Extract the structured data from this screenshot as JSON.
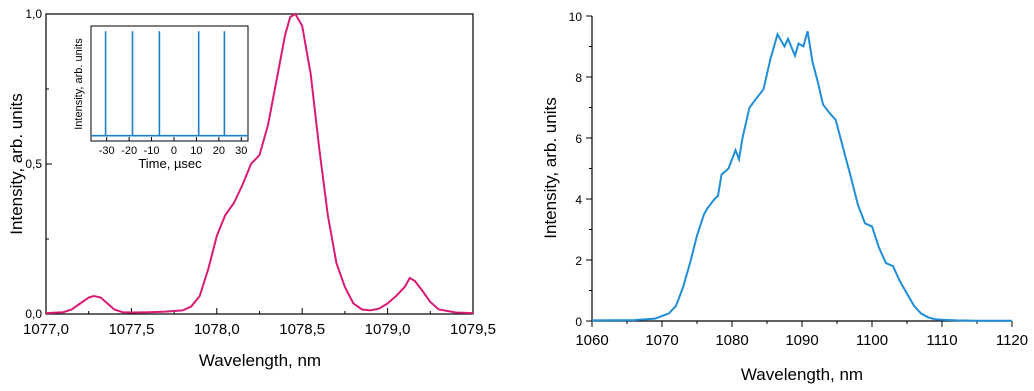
{
  "colors": {
    "left_series": "#d81b74",
    "right_series": "#1f8ed6",
    "inset_series": "#1e7fc9",
    "axes": "#000000"
  },
  "chart_data": [
    {
      "type": "line",
      "title": "",
      "xlabel": "Wavelength, nm",
      "ylabel": "Intensity, arb. units",
      "xlim": [
        1077.0,
        1079.5
      ],
      "ylim": [
        0.0,
        1.0
      ],
      "x_tick_labels": [
        "1077,0",
        "1077,5",
        "1078,0",
        "1078,5",
        "1079,0",
        "1079,5"
      ],
      "x_ticks": [
        1077.0,
        1077.5,
        1078.0,
        1078.5,
        1079.0,
        1079.5
      ],
      "y_tick_labels": [
        "0,0",
        "0,5",
        "1,0"
      ],
      "y_ticks": [
        0.0,
        0.5,
        1.0
      ],
      "grid": false,
      "series": [
        {
          "x": [
            1077.0,
            1077.1,
            1077.15,
            1077.2,
            1077.25,
            1077.28,
            1077.32,
            1077.36,
            1077.4,
            1077.45,
            1077.5,
            1077.6,
            1077.7,
            1077.8,
            1077.85,
            1077.9,
            1077.95,
            1078.0,
            1078.05,
            1078.1,
            1078.15,
            1078.2,
            1078.25,
            1078.3,
            1078.35,
            1078.4,
            1078.43,
            1078.46,
            1078.5,
            1078.55,
            1078.6,
            1078.65,
            1078.7,
            1078.75,
            1078.8,
            1078.85,
            1078.9,
            1078.95,
            1079.0,
            1079.05,
            1079.1,
            1079.13,
            1079.16,
            1079.2,
            1079.25,
            1079.3,
            1079.4,
            1079.5
          ],
          "y": [
            0.003,
            0.006,
            0.015,
            0.035,
            0.055,
            0.06,
            0.055,
            0.035,
            0.015,
            0.006,
            0.005,
            0.006,
            0.008,
            0.012,
            0.025,
            0.06,
            0.15,
            0.26,
            0.33,
            0.37,
            0.43,
            0.5,
            0.53,
            0.63,
            0.78,
            0.93,
            0.99,
            1.0,
            0.96,
            0.8,
            0.55,
            0.33,
            0.17,
            0.09,
            0.035,
            0.015,
            0.012,
            0.018,
            0.035,
            0.06,
            0.09,
            0.12,
            0.11,
            0.08,
            0.04,
            0.015,
            0.005,
            0.003
          ]
        }
      ],
      "inset": {
        "type": "line",
        "xlabel": "Time, µsec",
        "ylabel": "Intensity, arb. units",
        "xlim": [
          -37,
          33
        ],
        "x_tick_labels": [
          "-30",
          "-20",
          "-10",
          "0",
          "10",
          "20",
          "30"
        ],
        "x_ticks": [
          -30,
          -20,
          -10,
          0,
          10,
          20,
          30
        ],
        "pulse_times": [
          -30.5,
          -18.5,
          -6.5,
          11.0,
          22.5
        ],
        "baseline": 0.03,
        "pulse_height": 0.97
      }
    },
    {
      "type": "line",
      "title": "",
      "xlabel": "Wavelength, nm",
      "ylabel": "Intensity, arb. units",
      "xlim": [
        1060,
        1120
      ],
      "ylim": [
        0,
        10
      ],
      "x_tick_labels": [
        "1060",
        "1070",
        "1080",
        "1090",
        "1100",
        "1110",
        "1120"
      ],
      "x_ticks": [
        1060,
        1070,
        1080,
        1090,
        1100,
        1110,
        1120
      ],
      "y_tick_labels": [
        "0",
        "2",
        "4",
        "6",
        "8",
        "10"
      ],
      "y_ticks": [
        0,
        2,
        4,
        6,
        8,
        10
      ],
      "grid": false,
      "series": [
        {
          "x": [
            1060,
            1066,
            1069,
            1071,
            1072,
            1073,
            1074,
            1075,
            1076,
            1076.5,
            1077.5,
            1078,
            1078.5,
            1079.5,
            1080.5,
            1081,
            1081.5,
            1082.5,
            1083.5,
            1084.5,
            1085.5,
            1086.5,
            1087.5,
            1088,
            1089,
            1089.5,
            1090.2,
            1090.8,
            1091.5,
            1092.3,
            1093,
            1094,
            1094.8,
            1095.5,
            1096.3,
            1097,
            1098,
            1099,
            1100,
            1101,
            1102,
            1103,
            1104,
            1105,
            1106,
            1107,
            1108,
            1109,
            1110,
            1112,
            1115,
            1120
          ],
          "y": [
            0.02,
            0.03,
            0.08,
            0.25,
            0.5,
            1.1,
            1.9,
            2.8,
            3.5,
            3.7,
            4.0,
            4.1,
            4.8,
            5.0,
            5.6,
            5.3,
            6.0,
            7.0,
            7.3,
            7.6,
            8.6,
            9.4,
            9.0,
            9.25,
            8.7,
            9.1,
            9.0,
            9.5,
            8.5,
            7.8,
            7.1,
            6.8,
            6.6,
            6.0,
            5.3,
            4.7,
            3.8,
            3.2,
            3.1,
            2.4,
            1.9,
            1.8,
            1.3,
            0.9,
            0.5,
            0.25,
            0.12,
            0.06,
            0.04,
            0.02,
            0.01,
            0.01
          ]
        }
      ]
    }
  ]
}
